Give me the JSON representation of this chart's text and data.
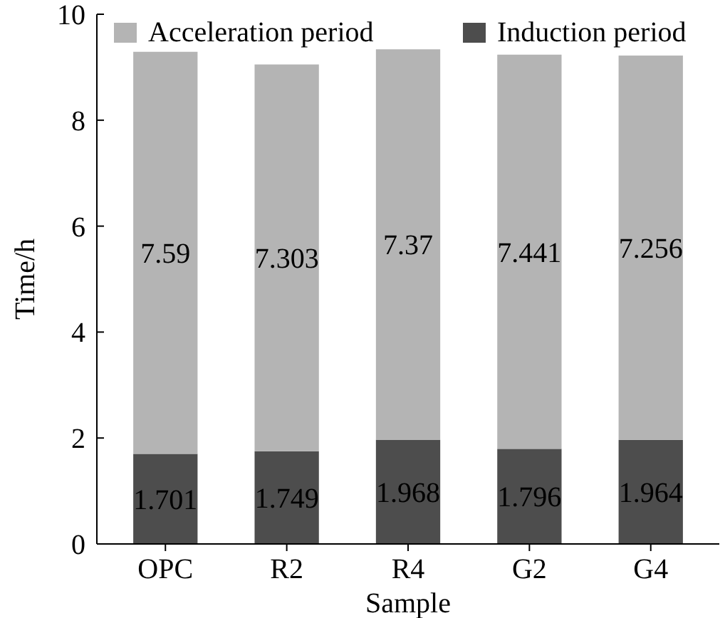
{
  "chart_data": {
    "type": "bar",
    "stacked": true,
    "xlabel": "Sample",
    "ylabel": "Time/h",
    "categories": [
      "OPC",
      "R2",
      "R4",
      "G2",
      "G4"
    ],
    "series": [
      {
        "name": "Induction period",
        "color": "#4d4d4d",
        "values": [
          1.701,
          1.749,
          1.968,
          1.796,
          1.964
        ]
      },
      {
        "name": "Acceleration period",
        "color": "#b4b4b4",
        "values": [
          7.59,
          7.303,
          7.37,
          7.441,
          7.256
        ]
      }
    ],
    "ylim": [
      0,
      10
    ],
    "yticks": [
      0,
      2,
      4,
      6,
      8,
      10
    ],
    "data_labels": true,
    "legend": "top"
  }
}
